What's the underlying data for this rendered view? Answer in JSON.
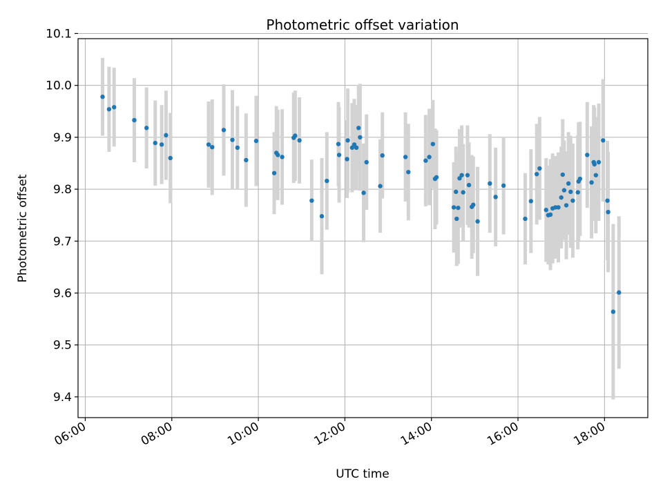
{
  "chart_data": {
    "type": "scatter",
    "title": "Photometric offset variation",
    "xlabel": "UTC time",
    "ylabel": "Photometric offset",
    "grid": true,
    "x_axis_kind": "time",
    "xlim": [
      "05:50",
      "19:00"
    ],
    "ylim": [
      9.36,
      10.09
    ],
    "x_ticks": [
      "06:00",
      "08:00",
      "10:00",
      "12:00",
      "14:00",
      "16:00",
      "18:00"
    ],
    "y_ticks": [
      "9.4",
      "9.5",
      "9.6",
      "9.7",
      "9.8",
      "9.9",
      "10.0",
      "10.1"
    ],
    "colors": {
      "marker": "#1f77b4",
      "errorbar": "#d3d3d3",
      "grid": "#b0b0b0"
    },
    "series": [
      {
        "x": [
          "06:24",
          "06:33",
          "06:40",
          "07:08",
          "07:25",
          "07:37",
          "07:46",
          "07:52",
          "07:58",
          "08:51",
          "08:56",
          "09:12",
          "09:24",
          "09:31",
          "09:43",
          "09:57",
          "10:22",
          "10:25",
          "10:27",
          "10:33",
          "10:49",
          "10:51",
          "10:57",
          "11:14",
          "11:28",
          "11:35",
          "11:51",
          "11:52",
          "12:03",
          "12:04",
          "12:10",
          "12:13",
          "12:16",
          "12:19",
          "12:21",
          "12:26",
          "12:30",
          "12:49",
          "12:52",
          "13:24",
          "13:28",
          "13:52",
          "13:57",
          "14:02",
          "14:05",
          "14:07",
          "14:31",
          "14:34",
          "14:35",
          "14:37",
          "14:39",
          "14:42",
          "14:44",
          "14:50",
          "14:52",
          "14:56",
          "14:58",
          "15:04",
          "15:21",
          "15:29",
          "15:40",
          "16:10",
          "16:18",
          "16:26",
          "16:30",
          "16:39",
          "16:42",
          "16:45",
          "16:48",
          "16:52",
          "16:56",
          "17:00",
          "17:02",
          "17:04",
          "17:07",
          "17:10",
          "17:13",
          "17:16",
          "17:23",
          "17:24",
          "17:26",
          "17:36",
          "17:42",
          "17:45",
          "17:46",
          "17:48",
          "17:52",
          "17:58",
          "18:04",
          "18:05",
          "18:12",
          "18:20"
        ],
        "y": [
          9.978,
          9.954,
          9.958,
          9.933,
          9.918,
          9.889,
          9.886,
          9.904,
          9.86,
          9.886,
          9.881,
          9.914,
          9.895,
          9.88,
          9.856,
          9.893,
          9.831,
          9.87,
          9.866,
          9.862,
          9.899,
          9.903,
          9.894,
          9.778,
          9.748,
          9.816,
          9.887,
          9.866,
          9.858,
          9.894,
          9.88,
          9.886,
          9.88,
          9.918,
          9.9,
          9.793,
          9.852,
          9.806,
          9.865,
          9.862,
          9.833,
          9.855,
          9.862,
          9.887,
          9.82,
          9.823,
          9.765,
          9.795,
          9.743,
          9.764,
          9.821,
          9.827,
          9.794,
          9.827,
          9.808,
          9.766,
          9.77,
          9.738,
          9.811,
          9.785,
          9.807,
          9.743,
          9.777,
          9.829,
          9.84,
          9.76,
          9.75,
          9.751,
          9.763,
          9.765,
          9.765,
          9.784,
          9.828,
          9.798,
          9.769,
          9.811,
          9.795,
          9.778,
          9.794,
          9.815,
          9.82,
          9.866,
          9.813,
          9.852,
          9.848,
          9.827,
          9.852,
          9.894,
          9.778,
          9.756,
          9.564,
          9.601
        ],
        "err": [
          0.075,
          0.082,
          0.076,
          0.081,
          0.078,
          0.082,
          0.076,
          0.086,
          0.087,
          0.083,
          0.092,
          0.088,
          0.096,
          0.08,
          0.09,
          0.087,
          0.079,
          0.09,
          0.087,
          0.092,
          0.087,
          0.087,
          0.083,
          0.079,
          0.112,
          0.094,
          0.081,
          0.092,
          0.075,
          0.1,
          0.086,
          0.088,
          0.082,
          0.083,
          0.103,
          0.095,
          0.092,
          0.09,
          0.083,
          0.086,
          0.093,
          0.088,
          0.093,
          0.085,
          0.097,
          0.091,
          0.087,
          0.087,
          0.091,
          0.108,
          0.095,
          0.096,
          0.093,
          0.096,
          0.082,
          0.1,
          0.093,
          0.105,
          0.095,
          0.095,
          0.094,
          0.088,
          0.1,
          0.097,
          0.099,
          0.1,
          0.095,
          0.107,
          0.106,
          0.099,
          0.106,
          0.098,
          0.107,
          0.096,
          0.104,
          0.099,
          0.108,
          0.11,
          0.11,
          0.114,
          0.11,
          0.102,
          0.108,
          0.11,
          0.109,
          0.112,
          0.113,
          0.118,
          0.115,
          0.116,
          0.169,
          0.147
        ]
      }
    ]
  }
}
